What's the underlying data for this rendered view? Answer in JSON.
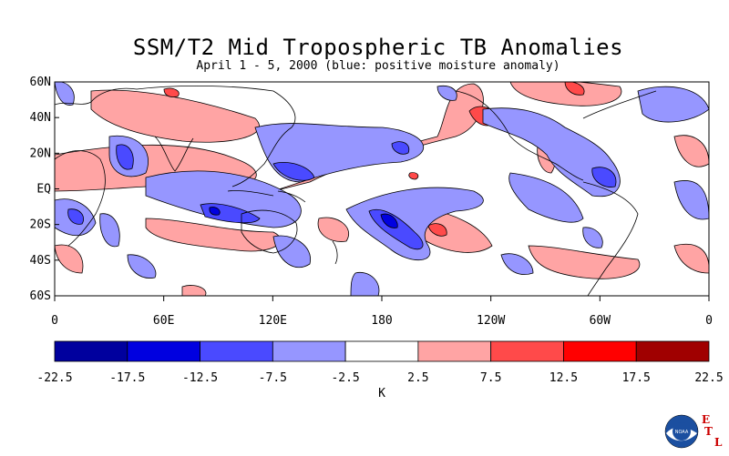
{
  "title": "SSM/T2 Mid Tropospheric TB Anomalies",
  "subtitle": "April 1 - 5, 2000 (blue: positive moisture anomaly)",
  "lat_labels": [
    "60N",
    "40N",
    "20N",
    "EQ",
    "20S",
    "40S",
    "60S"
  ],
  "lon_labels": [
    "0",
    "60E",
    "120E",
    "180",
    "120W",
    "60W",
    "0"
  ],
  "colorbar": {
    "colors": [
      "#00009e",
      "#0000e0",
      "#4a4aff",
      "#9696ff",
      "#ffffff",
      "#ffa4a4",
      "#ff4a4a",
      "#ff0000",
      "#a00000"
    ],
    "tick_labels": [
      "-22.5",
      "-17.5",
      "-12.5",
      "-7.5",
      "-2.5",
      "2.5",
      "7.5",
      "12.5",
      "17.5",
      "22.5"
    ],
    "unit": "K"
  },
  "logo": {
    "noaa_text": "NOAA",
    "etl_letters": [
      "E",
      "T",
      "L"
    ]
  }
}
